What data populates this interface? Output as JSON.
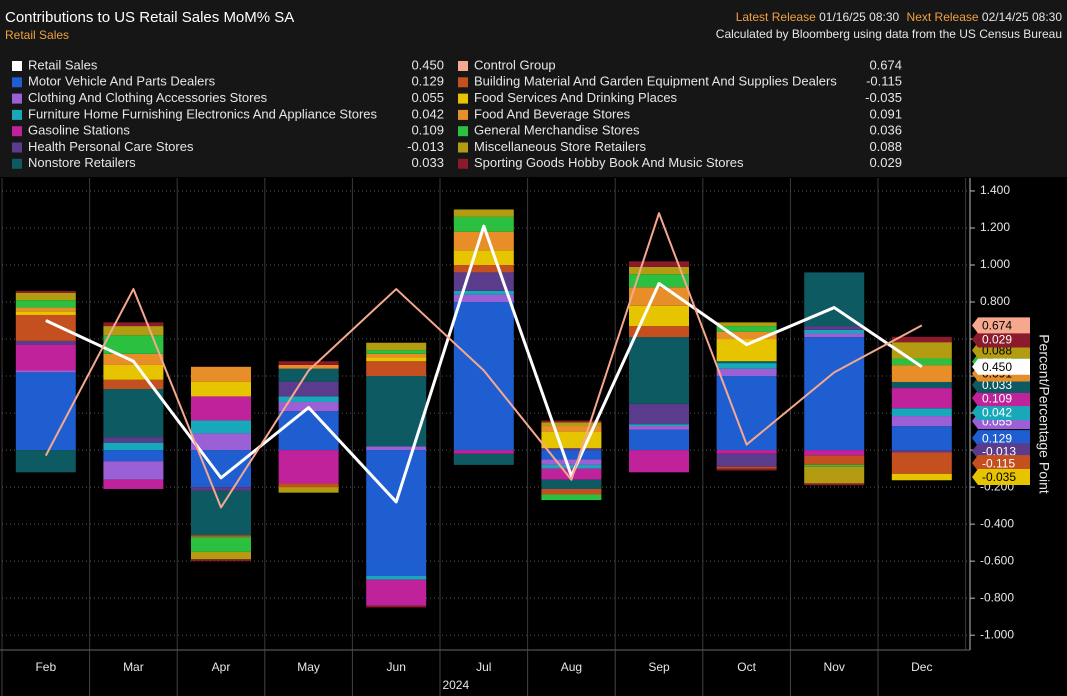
{
  "header": {
    "latest_label": "Latest Release",
    "latest": "01/16/25 08:30",
    "next_label": "Next Release",
    "next": "02/14/25 08:30",
    "source": "Calculated by Bloomberg using data from the US Census Bureau"
  },
  "chart_data": {
    "type": "bar",
    "title": "Contributions to US Retail Sales MoM% SA",
    "subtitle": "Retail Sales",
    "categories": [
      "Feb",
      "Mar",
      "Apr",
      "May",
      "Jun",
      "Jul",
      "Aug",
      "Sep",
      "Oct",
      "Nov",
      "Dec"
    ],
    "x_group_label": "2024",
    "y_label": "Percent/Percentage Point",
    "ylim": [
      -1.08,
      1.47
    ],
    "yticks": [
      {
        "value": 1.4,
        "label": "1.400"
      },
      {
        "value": 1.2,
        "label": "1.200"
      },
      {
        "value": 1,
        "label": "1.000"
      },
      {
        "value": 0.8,
        "label": "0.800"
      },
      {
        "value": 0.6,
        "label": "0.600"
      },
      {
        "value": 0.4,
        "label": "0.400"
      },
      {
        "value": 0.2,
        "label": "0.200"
      },
      {
        "value": 0,
        "label": "0.000"
      },
      {
        "value": -0.2,
        "label": "-0.200"
      },
      {
        "value": -0.4,
        "label": "-0.400"
      },
      {
        "value": -0.6,
        "label": "-0.600"
      },
      {
        "value": -0.8,
        "label": "-0.800"
      },
      {
        "value": -1,
        "label": "-1.000"
      }
    ],
    "grid": true,
    "series": [
      {
        "name": "Retail Sales",
        "type": "line",
        "color": "#ffffff",
        "values": [
          0.7,
          0.48,
          -0.15,
          0.23,
          -0.28,
          1.21,
          -0.14,
          0.9,
          0.57,
          0.77,
          0.45
        ],
        "value_labels": [
          null,
          null,
          null,
          null,
          null,
          null,
          null,
          null,
          null,
          null,
          "0.450"
        ]
      },
      {
        "name": "Motor Vehicle And Parts Dealers",
        "type": "bar",
        "color": "#1f5ed0",
        "values": [
          0.42,
          -0.06,
          -0.2,
          0.21,
          -0.68,
          0.8,
          -0.05,
          0.11,
          0.4,
          0.61,
          0.129
        ],
        "value_labels": [
          null,
          null,
          null,
          null,
          null,
          null,
          null,
          null,
          null,
          null,
          "0.129"
        ]
      },
      {
        "name": "Clothing And Clothing Accessories Stores",
        "type": "bar",
        "color": "#9b5fd6",
        "values": [
          0.01,
          -0.1,
          0.09,
          0.05,
          0.02,
          0.04,
          -0.03,
          0.02,
          0.04,
          0.02,
          0.055
        ],
        "value_labels": [
          null,
          null,
          null,
          null,
          null,
          null,
          null,
          null,
          null,
          null,
          "0.055"
        ]
      },
      {
        "name": "Furniture Home Furnishing Electronics And Appliance Stores",
        "type": "bar",
        "color": "#17a9b9",
        "values": [
          0.0,
          0.04,
          0.07,
          0.03,
          -0.02,
          0.02,
          -0.02,
          0.01,
          0.03,
          0.02,
          0.042
        ],
        "value_labels": [
          null,
          null,
          null,
          null,
          null,
          null,
          null,
          null,
          null,
          null,
          "0.042"
        ]
      },
      {
        "name": "Gasoline Stations",
        "type": "bar",
        "color": "#c0229c",
        "values": [
          0.14,
          -0.05,
          0.13,
          -0.18,
          -0.14,
          -0.02,
          -0.06,
          -0.12,
          -0.02,
          -0.03,
          0.109
        ],
        "value_labels": [
          null,
          null,
          null,
          null,
          null,
          null,
          null,
          null,
          null,
          null,
          "0.109"
        ]
      },
      {
        "name": "Health Personal Care Stores",
        "type": "bar",
        "color": "#5b3c8c",
        "values": [
          0.02,
          0.03,
          -0.02,
          0.08,
          0.0,
          0.1,
          0.01,
          0.11,
          -0.07,
          0.02,
          -0.013
        ],
        "value_labels": [
          null,
          null,
          null,
          null,
          null,
          null,
          null,
          null,
          null,
          null,
          "-0.013"
        ]
      },
      {
        "name": "Nonstore Retailers",
        "type": "bar",
        "color": "#0e5a62",
        "values": [
          -0.12,
          0.26,
          -0.24,
          0.07,
          0.38,
          -0.06,
          -0.05,
          0.36,
          0.01,
          0.29,
          0.033
        ],
        "value_labels": [
          null,
          null,
          null,
          null,
          null,
          null,
          null,
          null,
          null,
          null,
          "0.033"
        ]
      },
      {
        "name": "Control Group",
        "type": "line",
        "color": "#f6a88e",
        "values": [
          -0.03,
          0.87,
          -0.31,
          0.43,
          0.87,
          0.43,
          -0.16,
          1.28,
          0.03,
          0.42,
          0.674
        ],
        "value_labels": [
          null,
          null,
          null,
          null,
          null,
          null,
          null,
          null,
          null,
          null,
          "0.674"
        ]
      },
      {
        "name": "Building Material And Garden Equipment And Supplies Dealers",
        "type": "bar",
        "color": "#c4501f",
        "values": [
          0.14,
          0.05,
          -0.01,
          -0.02,
          0.08,
          0.04,
          -0.03,
          0.06,
          -0.01,
          -0.05,
          -0.115
        ],
        "value_labels": [
          null,
          null,
          null,
          null,
          null,
          null,
          null,
          null,
          null,
          null,
          "-0.115"
        ]
      },
      {
        "name": "Food Services And Drinking Places",
        "type": "bar",
        "color": "#e6c400",
        "values": [
          0.02,
          0.08,
          0.08,
          0.0,
          0.02,
          0.08,
          0.09,
          0.11,
          0.12,
          0.0,
          -0.035
        ],
        "value_labels": [
          null,
          null,
          null,
          null,
          null,
          null,
          null,
          null,
          null,
          null,
          "-0.035"
        ]
      },
      {
        "name": "Food And Beverage Stores",
        "type": "bar",
        "color": "#e88e28",
        "values": [
          0.02,
          0.06,
          0.08,
          0.02,
          0.02,
          0.1,
          0.03,
          0.1,
          0.04,
          0.0,
          0.091
        ],
        "value_labels": [
          null,
          null,
          null,
          null,
          null,
          null,
          null,
          null,
          null,
          null,
          "0.091"
        ]
      },
      {
        "name": "General Merchandise Stores",
        "type": "bar",
        "color": "#2cc040",
        "values": [
          0.04,
          0.1,
          -0.08,
          0.0,
          0.02,
          0.08,
          -0.03,
          0.07,
          0.03,
          -0.01,
          0.036
        ],
        "value_labels": [
          null,
          null,
          null,
          null,
          null,
          null,
          null,
          null,
          null,
          null,
          "0.036"
        ]
      },
      {
        "name": "Miscellaneous Store Retailers",
        "type": "bar",
        "color": "#b49c12",
        "values": [
          0.04,
          0.05,
          -0.04,
          -0.03,
          0.04,
          0.04,
          0.02,
          0.04,
          0.02,
          -0.09,
          0.088
        ],
        "value_labels": [
          null,
          null,
          null,
          null,
          null,
          null,
          null,
          null,
          null,
          null,
          "0.088"
        ]
      },
      {
        "name": "Sporting Goods Hobby Book And Music Stores",
        "type": "bar",
        "color": "#8b1a2c",
        "values": [
          0.01,
          0.02,
          -0.01,
          0.02,
          -0.01,
          0.0,
          0.01,
          0.03,
          -0.01,
          -0.01,
          0.029
        ],
        "value_labels": [
          null,
          null,
          null,
          null,
          null,
          null,
          null,
          null,
          null,
          null,
          "0.029"
        ]
      }
    ]
  }
}
